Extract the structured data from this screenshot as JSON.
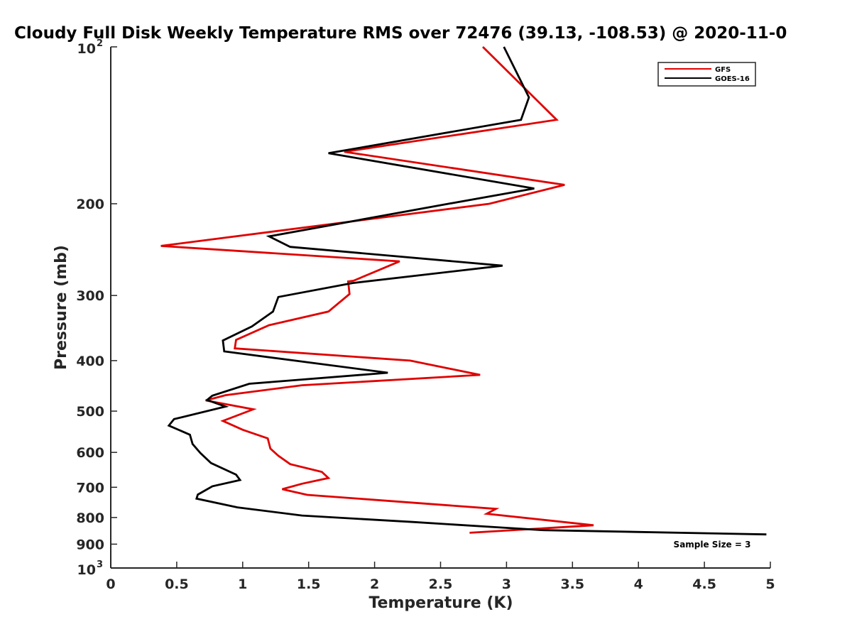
{
  "chart_data": {
    "type": "line",
    "title": "Cloudy Full Disk Weekly Temperature RMS over 72476 (39.13, -108.53) @ 2020-11-0",
    "xlabel": "Temperature (K)",
    "ylabel": "Pressure (mb)",
    "xlim": [
      0,
      5
    ],
    "ylim": [
      1000,
      100
    ],
    "yscale": "log",
    "y_reversed": true,
    "grid": false,
    "legend_position": "top-right",
    "x_ticks": [
      "0",
      "0.5",
      "1",
      "1.5",
      "2",
      "2.5",
      "3",
      "3.5",
      "4",
      "4.5",
      "5"
    ],
    "y_ticks": [
      {
        "value": 100,
        "base": "10",
        "exp": "2"
      },
      {
        "value": 200,
        "label": "200"
      },
      {
        "value": 300,
        "label": "300"
      },
      {
        "value": 400,
        "label": "400"
      },
      {
        "value": 500,
        "label": "500"
      },
      {
        "value": 600,
        "label": "600"
      },
      {
        "value": 700,
        "label": "700"
      },
      {
        "value": 800,
        "label": "800"
      },
      {
        "value": 900,
        "label": "900"
      },
      {
        "value": 1000,
        "base": "10",
        "exp": "3"
      }
    ],
    "annotation": "Sample Size = 3",
    "series": [
      {
        "name": "GFS",
        "color": "#e00000",
        "points": [
          [
            2.82,
            100
          ],
          [
            3.38,
            138
          ],
          [
            1.77,
            159
          ],
          [
            3.44,
            184
          ],
          [
            2.87,
            200
          ],
          [
            0.38,
            241
          ],
          [
            2.19,
            258
          ],
          [
            1.84,
            281
          ],
          [
            1.8,
            282
          ],
          [
            1.81,
            298
          ],
          [
            1.65,
            322
          ],
          [
            1.2,
            342
          ],
          [
            0.95,
            365
          ],
          [
            0.94,
            379
          ],
          [
            2.27,
            400
          ],
          [
            2.8,
            426
          ],
          [
            1.45,
            446
          ],
          [
            0.87,
            466
          ],
          [
            0.72,
            477
          ],
          [
            1.08,
            496
          ],
          [
            0.85,
            522
          ],
          [
            1.0,
            543
          ],
          [
            1.19,
            564
          ],
          [
            1.21,
            590
          ],
          [
            1.27,
            609
          ],
          [
            1.36,
            632
          ],
          [
            1.6,
            654
          ],
          [
            1.65,
            672
          ],
          [
            1.45,
            689
          ],
          [
            1.3,
            706
          ],
          [
            1.49,
            724
          ],
          [
            2.92,
            770
          ],
          [
            2.85,
            787
          ],
          [
            3.66,
            828
          ],
          [
            2.72,
            856
          ]
        ]
      },
      {
        "name": "GOES-16",
        "color": "#000000",
        "points": [
          [
            2.98,
            100
          ],
          [
            3.17,
            125
          ],
          [
            3.11,
            138
          ],
          [
            1.65,
            160
          ],
          [
            3.21,
            187
          ],
          [
            2.56,
            200
          ],
          [
            1.2,
            231
          ],
          [
            1.36,
            242
          ],
          [
            2.97,
            263
          ],
          [
            1.83,
            284
          ],
          [
            1.27,
            302
          ],
          [
            1.23,
            322
          ],
          [
            1.07,
            344
          ],
          [
            0.85,
            366
          ],
          [
            0.86,
            384
          ],
          [
            2.1,
            422
          ],
          [
            1.05,
            443
          ],
          [
            0.77,
            467
          ],
          [
            0.73,
            476
          ],
          [
            0.87,
            490
          ],
          [
            0.48,
            518
          ],
          [
            0.44,
            533
          ],
          [
            0.6,
            555
          ],
          [
            0.62,
            578
          ],
          [
            0.68,
            602
          ],
          [
            0.76,
            629
          ],
          [
            0.95,
            662
          ],
          [
            0.98,
            678
          ],
          [
            0.77,
            697
          ],
          [
            0.66,
            723
          ],
          [
            0.65,
            736
          ],
          [
            0.96,
            765
          ],
          [
            1.45,
            793
          ],
          [
            2.29,
            816
          ],
          [
            2.95,
            836
          ],
          [
            3.28,
            846
          ],
          [
            4.97,
            862
          ]
        ]
      }
    ]
  }
}
